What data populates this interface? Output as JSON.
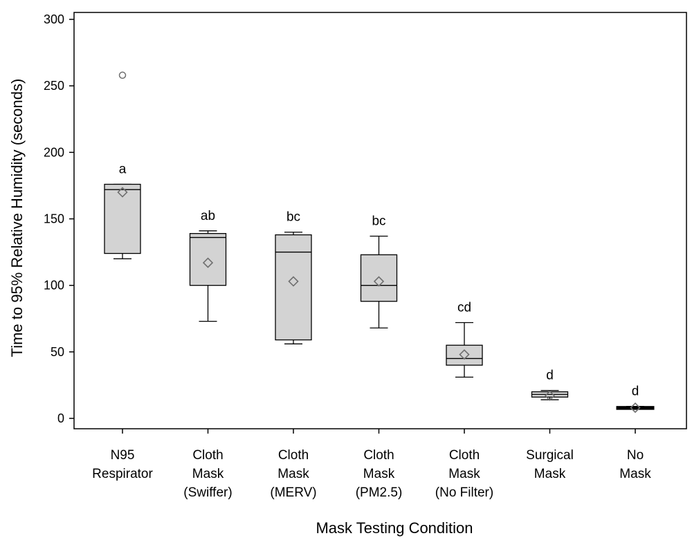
{
  "chart_data": {
    "type": "box",
    "xlabel": "Mask Testing Condition",
    "ylabel": "Time to 95% Relative Humidity (seconds)",
    "ylim": [
      -8,
      305
    ],
    "yticks": [
      "0",
      "50",
      "100",
      "150",
      "200",
      "250",
      "300"
    ],
    "grid": false,
    "legend": "none",
    "colors": {
      "box_fill": "#d3d3d3",
      "stroke": "#000000",
      "mean_marker": "#6e6e6e",
      "outlier": "#6e6e6e"
    },
    "categories": [
      {
        "lines": [
          "N95",
          "Respirator"
        ],
        "q1": 124,
        "median": 172,
        "q3": 176,
        "whisker_low": 120,
        "whisker_high": 176,
        "mean": 170,
        "outliers": [
          258
        ],
        "letter": "a"
      },
      {
        "lines": [
          "Cloth",
          "Mask",
          "(Swiffer)"
        ],
        "q1": 100,
        "median": 136,
        "q3": 139,
        "whisker_low": 73,
        "whisker_high": 141,
        "mean": 117,
        "outliers": [],
        "letter": "ab"
      },
      {
        "lines": [
          "Cloth",
          "Mask",
          "(MERV)"
        ],
        "q1": 59,
        "median": 125,
        "q3": 138,
        "whisker_low": 56,
        "whisker_high": 140,
        "mean": 103,
        "outliers": [],
        "letter": "bc"
      },
      {
        "lines": [
          "Cloth",
          "Mask",
          "(PM2.5)"
        ],
        "q1": 88,
        "median": 100,
        "q3": 123,
        "whisker_low": 68,
        "whisker_high": 137,
        "mean": 103,
        "outliers": [],
        "letter": "bc"
      },
      {
        "lines": [
          "Cloth",
          "Mask",
          "(No Filter)"
        ],
        "q1": 40,
        "median": 45,
        "q3": 55,
        "whisker_low": 31,
        "whisker_high": 72,
        "mean": 48,
        "outliers": [],
        "letter": "cd"
      },
      {
        "lines": [
          "Surgical",
          "Mask"
        ],
        "q1": 16,
        "median": 18,
        "q3": 20,
        "whisker_low": 14,
        "whisker_high": 21,
        "mean": 17,
        "outliers": [],
        "letter": "d"
      },
      {
        "lines": [
          "No",
          "Mask"
        ],
        "q1": 7.5,
        "median": 8,
        "q3": 8.5,
        "whisker_low": 7,
        "whisker_high": 9,
        "mean": 8,
        "outliers": [],
        "letter": "d"
      }
    ]
  }
}
